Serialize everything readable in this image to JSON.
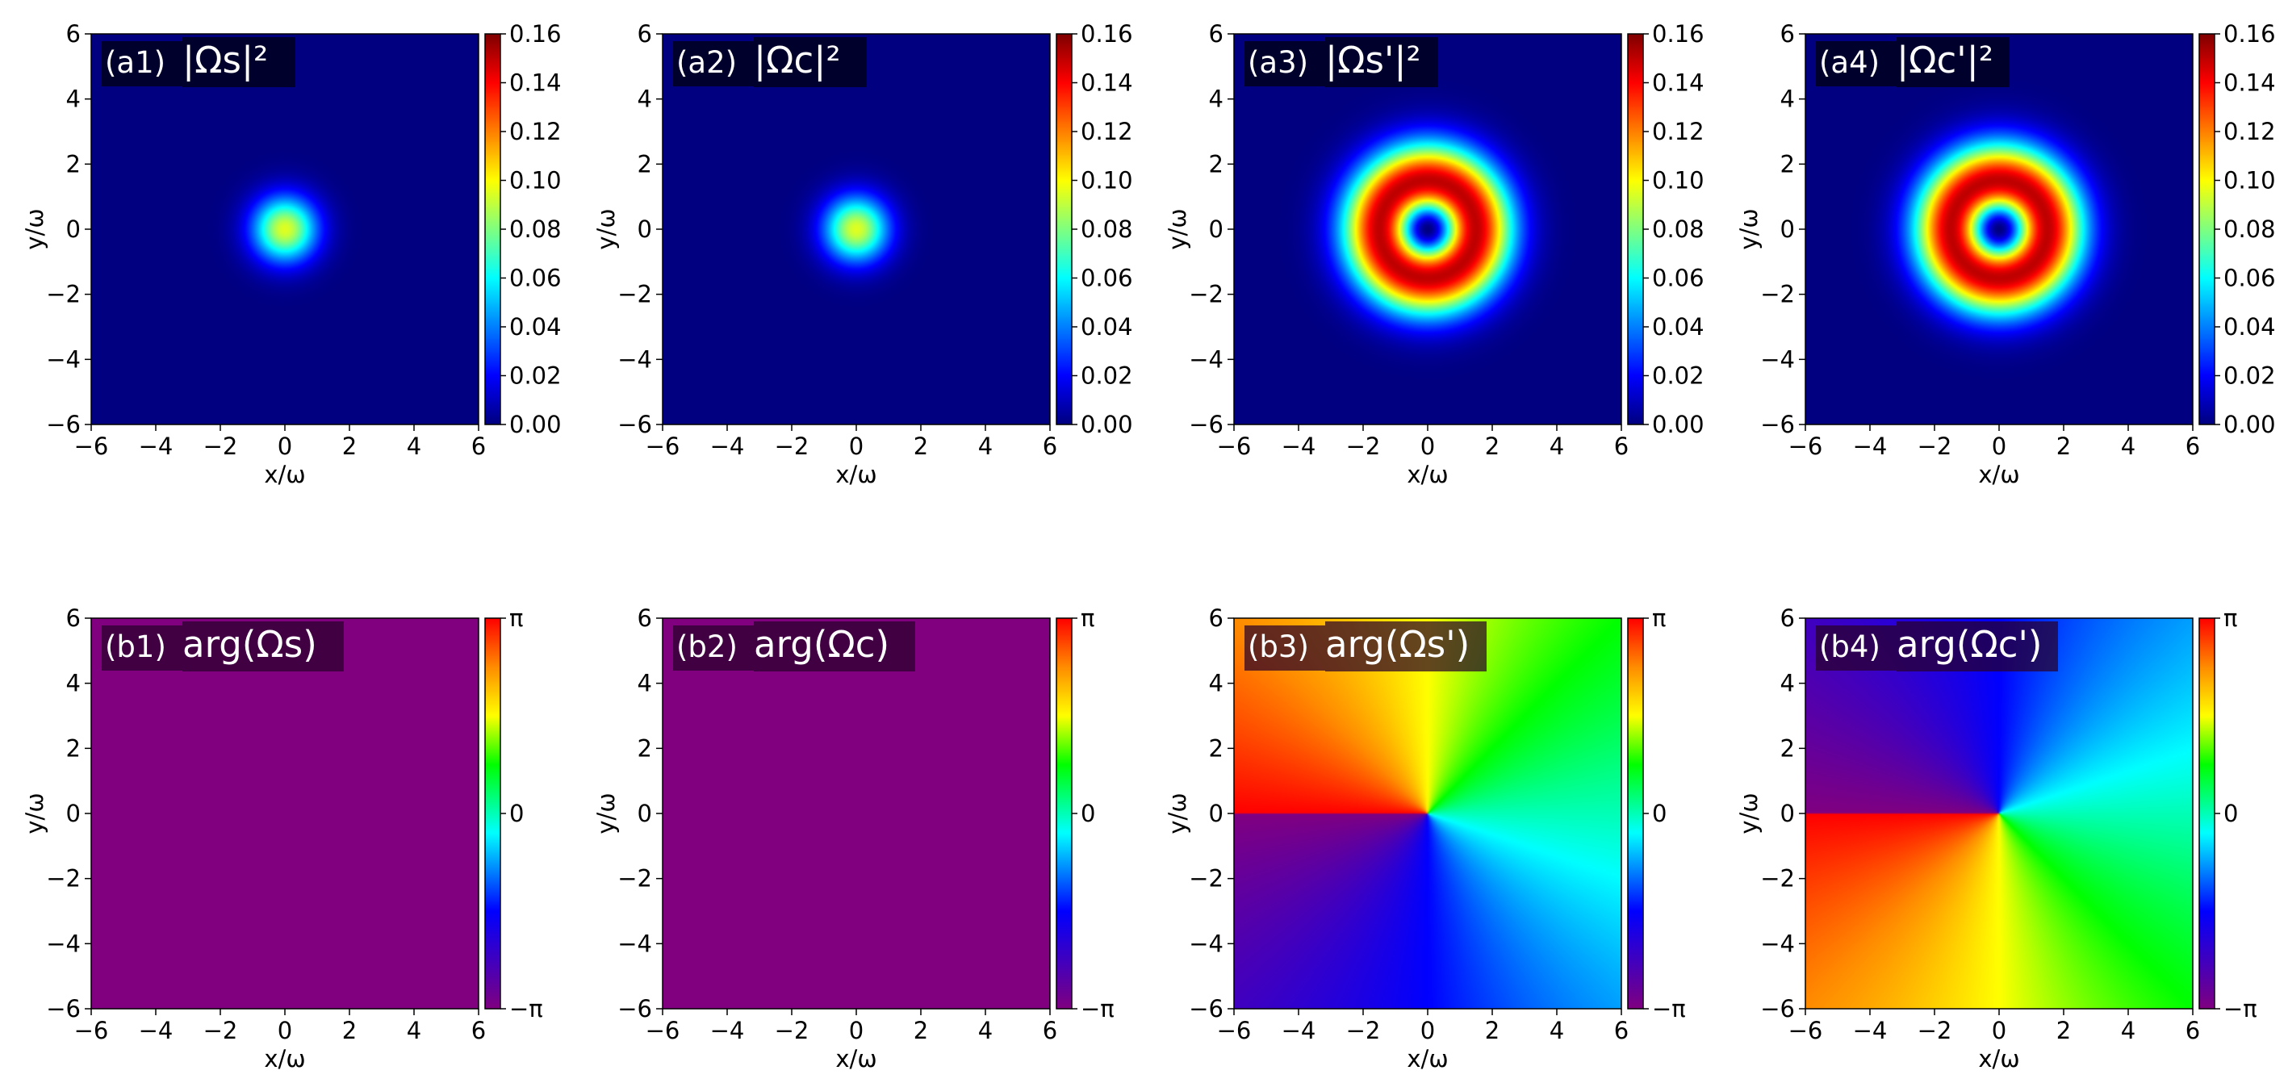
{
  "chart_data": [
    {
      "type": "heatmap",
      "panel": "(a1)",
      "title": "|Ωs|²",
      "field": "gaussian",
      "xlabel": "x/ω",
      "ylabel": "y/ω",
      "xlim": [
        -6,
        6
      ],
      "ylim": [
        -6,
        6
      ],
      "xticks": [
        "−6",
        "−4",
        "−2",
        "0",
        "2",
        "4",
        "6"
      ],
      "yticks": [
        "−6",
        "−4",
        "−2",
        "0",
        "2",
        "4",
        "6"
      ],
      "colorbar": {
        "min": 0.0,
        "max": 0.16,
        "ticks": [
          "0.00",
          "0.02",
          "0.04",
          "0.06",
          "0.08",
          "0.10",
          "0.12",
          "0.14",
          "0.16"
        ],
        "colormap": "jet"
      },
      "peak": 0.095,
      "beam_waist": 1.0
    },
    {
      "type": "heatmap",
      "panel": "(a2)",
      "title": "|Ωc|²",
      "field": "gaussian",
      "xlabel": "x/ω",
      "ylabel": "y/ω",
      "xlim": [
        -6,
        6
      ],
      "ylim": [
        -6,
        6
      ],
      "xticks": [
        "−6",
        "−4",
        "−2",
        "0",
        "2",
        "4",
        "6"
      ],
      "yticks": [
        "−6",
        "−4",
        "−2",
        "0",
        "2",
        "4",
        "6"
      ],
      "colorbar": {
        "min": 0.0,
        "max": 0.16,
        "ticks": [
          "0.00",
          "0.02",
          "0.04",
          "0.06",
          "0.08",
          "0.10",
          "0.12",
          "0.14",
          "0.16"
        ],
        "colormap": "jet"
      },
      "peak": 0.095,
      "beam_waist": 1.0
    },
    {
      "type": "heatmap",
      "panel": "(a3)",
      "title": "|Ωs'|²",
      "field": "donut",
      "xlabel": "x/ω",
      "ylabel": "y/ω",
      "xlim": [
        -6,
        6
      ],
      "ylim": [
        -6,
        6
      ],
      "xticks": [
        "−6",
        "−4",
        "−2",
        "0",
        "2",
        "4",
        "6"
      ],
      "yticks": [
        "−6",
        "−4",
        "−2",
        "0",
        "2",
        "4",
        "6"
      ],
      "colorbar": {
        "min": 0.0,
        "max": 0.16,
        "ticks": [
          "0.00",
          "0.02",
          "0.04",
          "0.06",
          "0.08",
          "0.10",
          "0.12",
          "0.14",
          "0.16"
        ],
        "colormap": "jet"
      },
      "peak": 0.15,
      "ring_radius": 1.5
    },
    {
      "type": "heatmap",
      "panel": "(a4)",
      "title": "|Ωc'|²",
      "field": "donut",
      "xlabel": "x/ω",
      "ylabel": "y/ω",
      "xlim": [
        -6,
        6
      ],
      "ylim": [
        -6,
        6
      ],
      "xticks": [
        "−6",
        "−4",
        "−2",
        "0",
        "2",
        "4",
        "6"
      ],
      "yticks": [
        "−6",
        "−4",
        "−2",
        "0",
        "2",
        "4",
        "6"
      ],
      "colorbar": {
        "min": 0.0,
        "max": 0.16,
        "ticks": [
          "0.00",
          "0.02",
          "0.04",
          "0.06",
          "0.08",
          "0.10",
          "0.12",
          "0.14",
          "0.16"
        ],
        "colormap": "jet"
      },
      "peak": 0.15,
      "ring_radius": 1.5
    },
    {
      "type": "heatmap",
      "panel": "(b1)",
      "title": "arg(Ωs)",
      "field": "phase_constant",
      "xlabel": "x/ω",
      "ylabel": "y/ω",
      "xlim": [
        -6,
        6
      ],
      "ylim": [
        -6,
        6
      ],
      "xticks": [
        "−6",
        "−4",
        "−2",
        "0",
        "2",
        "4",
        "6"
      ],
      "yticks": [
        "−6",
        "−4",
        "−2",
        "0",
        "2",
        "4",
        "6"
      ],
      "colorbar": {
        "min": -3.14159,
        "max": 3.14159,
        "ticks": [
          "−π",
          "0",
          "π"
        ],
        "colormap": "phase"
      },
      "phase_value": -3.14159
    },
    {
      "type": "heatmap",
      "panel": "(b2)",
      "title": "arg(Ωc)",
      "field": "phase_constant",
      "xlabel": "x/ω",
      "ylabel": "y/ω",
      "xlim": [
        -6,
        6
      ],
      "ylim": [
        -6,
        6
      ],
      "xticks": [
        "−6",
        "−4",
        "−2",
        "0",
        "2",
        "4",
        "6"
      ],
      "yticks": [
        "−6",
        "−4",
        "−2",
        "0",
        "2",
        "4",
        "6"
      ],
      "colorbar": {
        "min": -3.14159,
        "max": 3.14159,
        "ticks": [
          "−π",
          "0",
          "π"
        ],
        "colormap": "phase"
      },
      "phase_value": -3.14159
    },
    {
      "type": "heatmap",
      "panel": "(b3)",
      "title": "arg(Ωs')",
      "field": "phase_vortex",
      "xlabel": "x/ω",
      "ylabel": "y/ω",
      "xlim": [
        -6,
        6
      ],
      "ylim": [
        -6,
        6
      ],
      "xticks": [
        "−6",
        "−4",
        "−2",
        "0",
        "2",
        "4",
        "6"
      ],
      "yticks": [
        "−6",
        "−4",
        "−2",
        "0",
        "2",
        "4",
        "6"
      ],
      "colorbar": {
        "min": -3.14159,
        "max": 3.14159,
        "ticks": [
          "−π",
          "0",
          "π"
        ],
        "colormap": "phase"
      },
      "topological_charge": 1
    },
    {
      "type": "heatmap",
      "panel": "(b4)",
      "title": "arg(Ωc')",
      "field": "phase_vortex",
      "xlabel": "x/ω",
      "ylabel": "y/ω",
      "xlim": [
        -6,
        6
      ],
      "ylim": [
        -6,
        6
      ],
      "xticks": [
        "−6",
        "−4",
        "−2",
        "0",
        "2",
        "4",
        "6"
      ],
      "yticks": [
        "−6",
        "−4",
        "−2",
        "0",
        "2",
        "4",
        "6"
      ],
      "colorbar": {
        "min": -3.14159,
        "max": 3.14159,
        "ticks": [
          "−π",
          "0",
          "π"
        ],
        "colormap": "phase"
      },
      "topological_charge": -1
    }
  ]
}
